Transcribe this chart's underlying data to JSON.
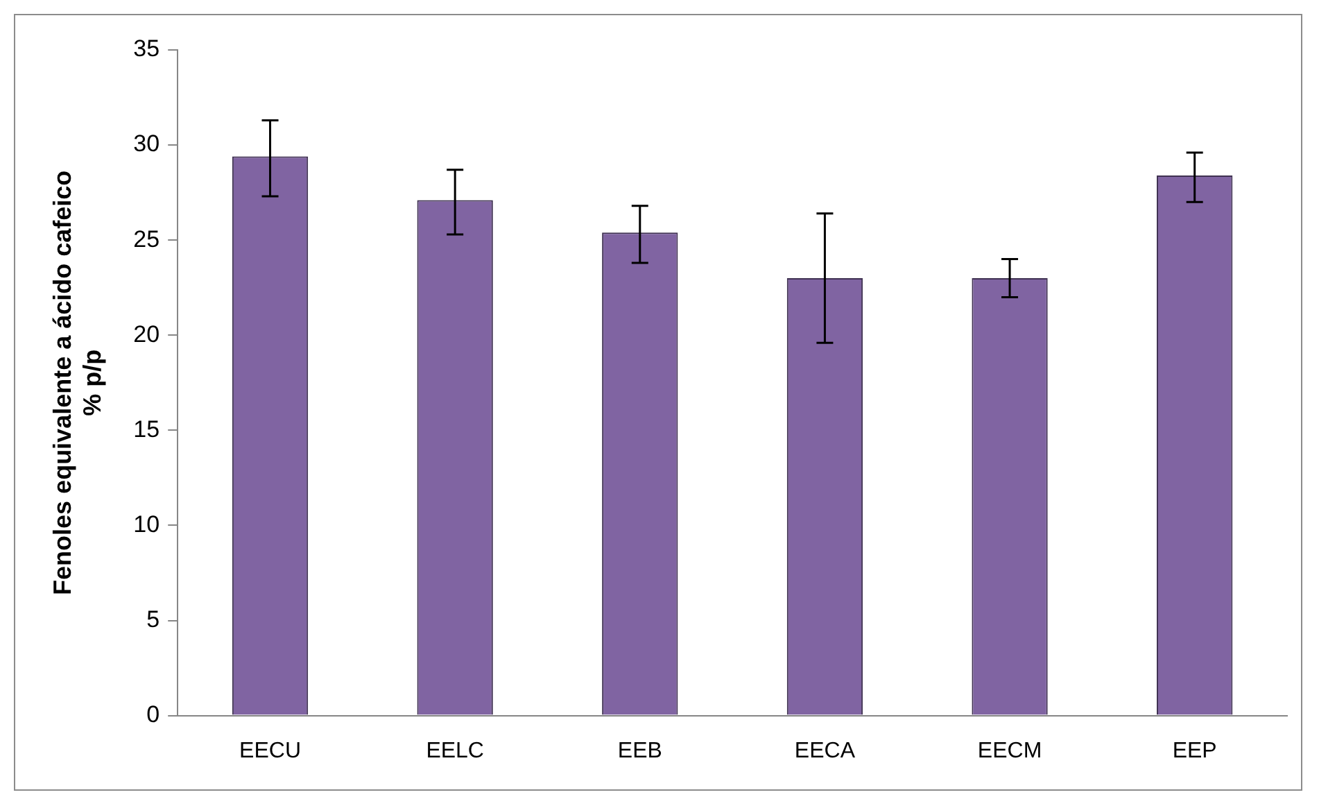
{
  "chart_data": {
    "type": "bar",
    "ylabel": "Fenoles equivalente a ácido cafeico\n% p/p",
    "categories": [
      "EECU",
      "EELC",
      "EEB",
      "EECA",
      "EECM",
      "EEP"
    ],
    "values": [
      29.4,
      27.1,
      25.4,
      23.0,
      23.0,
      28.4
    ],
    "errors": [
      [
        27.3,
        31.3
      ],
      [
        25.3,
        28.7
      ],
      [
        23.8,
        26.8
      ],
      [
        19.6,
        26.4
      ],
      [
        22.0,
        24.0
      ],
      [
        27.0,
        29.6
      ]
    ],
    "color": "#8064a2",
    "ylim": [
      0,
      35
    ],
    "yticks": [
      0,
      5,
      10,
      15,
      20,
      25,
      30,
      35
    ],
    "grid": false,
    "legend": false
  }
}
